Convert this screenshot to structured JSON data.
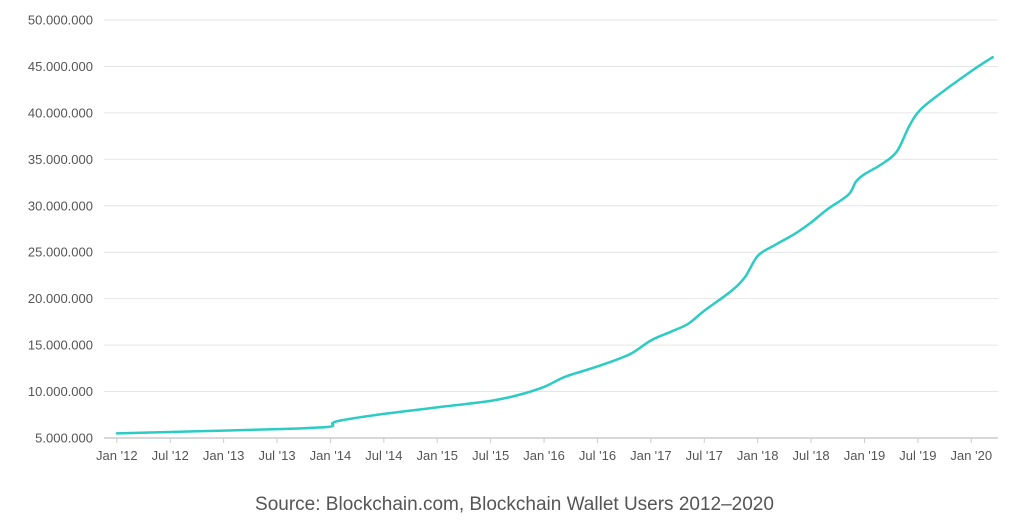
{
  "caption": "Source: Blockchain.com, Blockchain Wallet Users 2012–2020",
  "colors": {
    "line": "#2ccbc3",
    "grid": "#e6e6e6",
    "axis": "#cccccc",
    "text": "#555555"
  },
  "chart_data": {
    "type": "line",
    "title": "",
    "xlabel": "",
    "ylabel": "",
    "ylim": [
      5000000,
      50000000
    ],
    "xlim": [
      2011.88,
      2020.25
    ],
    "grid": true,
    "yticks": [
      {
        "value": 5000000,
        "label": "5.000.000"
      },
      {
        "value": 10000000,
        "label": "10.000.000"
      },
      {
        "value": 15000000,
        "label": "15.000.000"
      },
      {
        "value": 20000000,
        "label": "20.000.000"
      },
      {
        "value": 25000000,
        "label": "25.000.000"
      },
      {
        "value": 30000000,
        "label": "30.000.000"
      },
      {
        "value": 35000000,
        "label": "35.000.000"
      },
      {
        "value": 40000000,
        "label": "40.000.000"
      },
      {
        "value": 45000000,
        "label": "45.000.000"
      },
      {
        "value": 50000000,
        "label": "50.000.000"
      }
    ],
    "xticks": [
      {
        "value": 2012.0,
        "label": "Jan '12"
      },
      {
        "value": 2012.5,
        "label": "Jul '12"
      },
      {
        "value": 2013.0,
        "label": "Jan '13"
      },
      {
        "value": 2013.5,
        "label": "Jul '13"
      },
      {
        "value": 2014.0,
        "label": "Jan '14"
      },
      {
        "value": 2014.5,
        "label": "Jul '14"
      },
      {
        "value": 2015.0,
        "label": "Jan '15"
      },
      {
        "value": 2015.5,
        "label": "Jul '15"
      },
      {
        "value": 2016.0,
        "label": "Jan '16"
      },
      {
        "value": 2016.5,
        "label": "Jul '16"
      },
      {
        "value": 2017.0,
        "label": "Jan '17"
      },
      {
        "value": 2017.5,
        "label": "Jul '17"
      },
      {
        "value": 2018.0,
        "label": "Jan '18"
      },
      {
        "value": 2018.5,
        "label": "Jul '18"
      },
      {
        "value": 2019.0,
        "label": "Jan '19"
      },
      {
        "value": 2019.5,
        "label": "Jul '19"
      },
      {
        "value": 2020.0,
        "label": "Jan '20"
      }
    ],
    "series": [
      {
        "name": "Blockchain Wallet Users",
        "x": [
          2012.0,
          2012.5,
          2013.0,
          2013.5,
          2013.98,
          2014.02,
          2014.1,
          2014.5,
          2015.0,
          2015.5,
          2015.75,
          2016.0,
          2016.2,
          2016.5,
          2016.8,
          2017.0,
          2017.2,
          2017.35,
          2017.5,
          2017.75,
          2017.88,
          2018.0,
          2018.15,
          2018.35,
          2018.5,
          2018.65,
          2018.85,
          2018.92,
          2019.0,
          2019.15,
          2019.3,
          2019.42,
          2019.52,
          2019.7,
          2020.0,
          2020.2
        ],
        "values": [
          5500000,
          5650000,
          5800000,
          5950000,
          6200000,
          6600000,
          6900000,
          7600000,
          8300000,
          9000000,
          9600000,
          10500000,
          11600000,
          12700000,
          14000000,
          15500000,
          16500000,
          17300000,
          18700000,
          20800000,
          22300000,
          24600000,
          25700000,
          27000000,
          28200000,
          29600000,
          31200000,
          32600000,
          33400000,
          34400000,
          35800000,
          38600000,
          40300000,
          42000000,
          44500000,
          46000000
        ]
      }
    ]
  }
}
